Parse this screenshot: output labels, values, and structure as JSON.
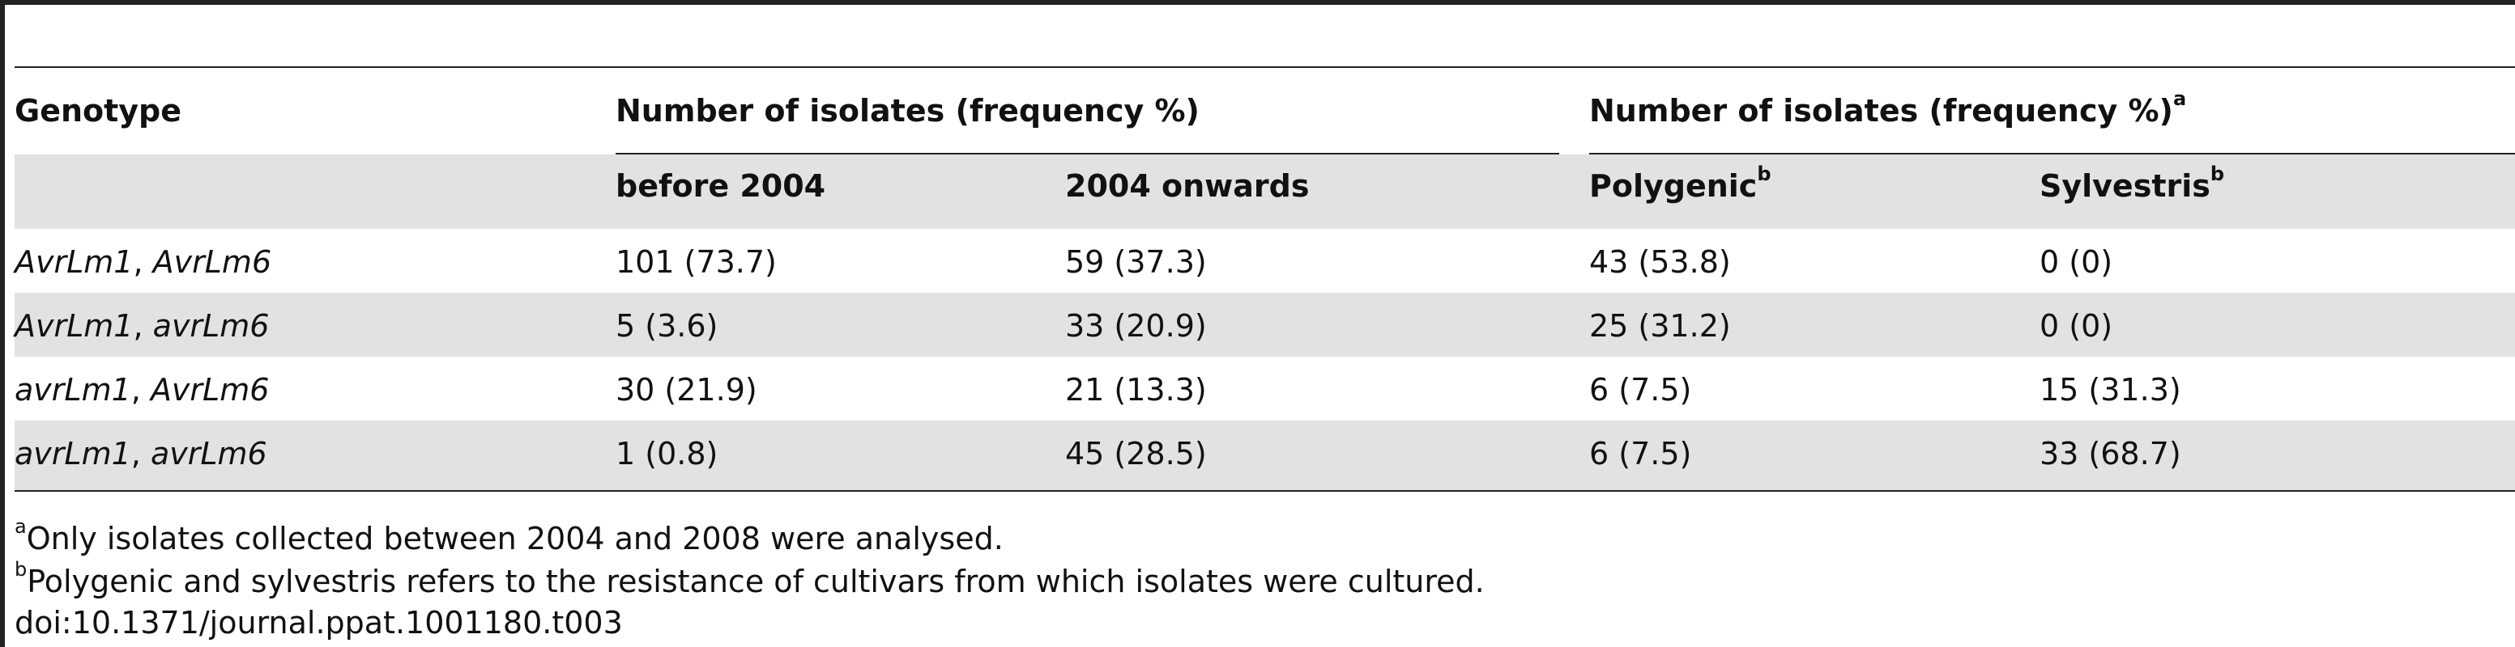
{
  "table": {
    "header": {
      "genotype": "Genotype",
      "group1": "Number of isolates (frequency %)",
      "group2": "Number of isolates (frequency %)",
      "group2_sup": "a",
      "sub": {
        "before": "before 2004",
        "onwards": "2004 onwards",
        "polygenic": "Polygenic",
        "polygenic_sup": "b",
        "sylvestris": "Sylvestris",
        "sylvestris_sup": "b"
      }
    },
    "rows": [
      {
        "g1": "AvrLm1",
        "sep": ", ",
        "g2": "AvrLm6",
        "before": "101 (73.7)",
        "onwards": "59 (37.3)",
        "polygenic": "43 (53.8)",
        "sylvestris": "0 (0)"
      },
      {
        "g1": "AvrLm1",
        "sep": ", ",
        "g2": "avrLm6",
        "before": "5 (3.6)",
        "onwards": "33 (20.9)",
        "polygenic": "25 (31.2)",
        "sylvestris": "0 (0)"
      },
      {
        "g1": "avrLm1",
        "sep": ", ",
        "g2": "AvrLm6",
        "before": "30 (21.9)",
        "onwards": "21 (13.3)",
        "polygenic": "6 (7.5)",
        "sylvestris": "15 (31.3)"
      },
      {
        "g1": "avrLm1",
        "sep": ", ",
        "g2": "avrLm6",
        "before": "1 (0.8)",
        "onwards": "45 (28.5)",
        "polygenic": "6 (7.5)",
        "sylvestris": "33 (68.7)"
      }
    ]
  },
  "footnotes": [
    {
      "mark": "a",
      "text": "Only isolates collected between 2004 and 2008 were analysed."
    },
    {
      "mark": "b",
      "text": "Polygenic and sylvestris refers to the resistance of cultivars from which isolates were cultured."
    }
  ],
  "doi": "doi:10.1371/journal.ppat.1001180.t003"
}
